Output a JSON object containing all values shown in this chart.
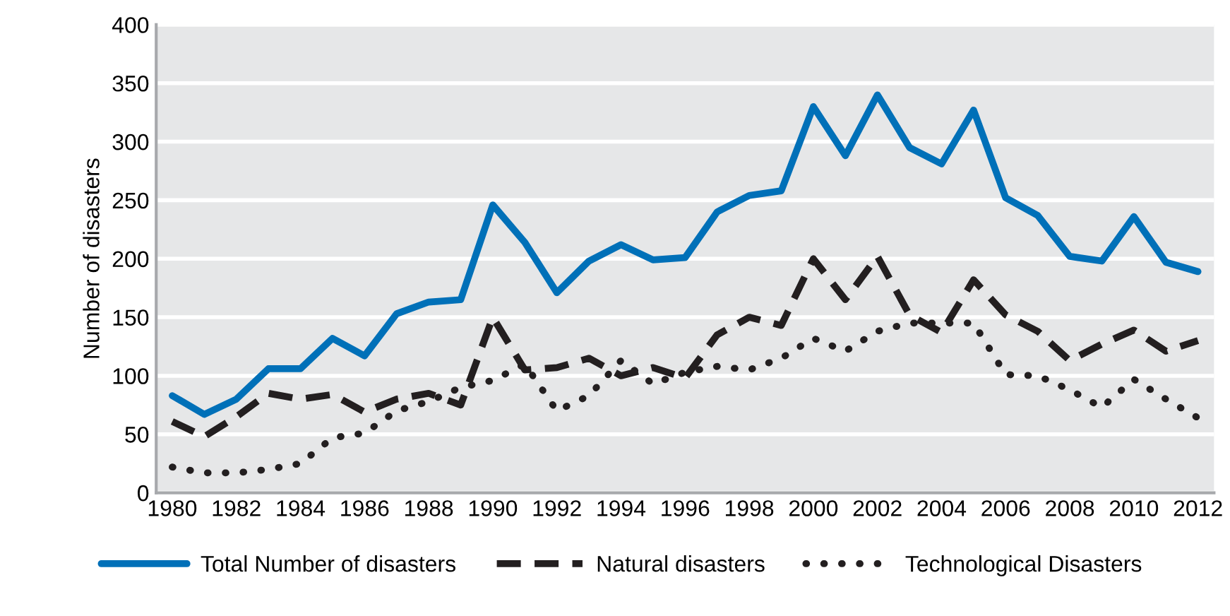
{
  "chart_data": {
    "type": "line",
    "ylabel": "Number of disasters",
    "x": [
      1980,
      1981,
      1982,
      1983,
      1984,
      1985,
      1986,
      1987,
      1988,
      1989,
      1990,
      1991,
      1992,
      1993,
      1994,
      1995,
      1996,
      1997,
      1998,
      1999,
      2000,
      2001,
      2002,
      2003,
      2004,
      2005,
      2006,
      2007,
      2008,
      2009,
      2010,
      2011,
      2012
    ],
    "series": [
      {
        "name": "Total Number of disasters",
        "color": "#0070b8",
        "line_style": "solid",
        "values": [
          83,
          67,
          80,
          106,
          106,
          132,
          117,
          153,
          163,
          165,
          246,
          214,
          171,
          198,
          212,
          199,
          201,
          240,
          254,
          258,
          330,
          288,
          340,
          295,
          281,
          327,
          252,
          237,
          202,
          198,
          236,
          197,
          189
        ]
      },
      {
        "name": "Natural disasters",
        "color": "#231f20",
        "line_style": "dashed",
        "values": [
          61,
          48,
          65,
          85,
          80,
          84,
          69,
          80,
          85,
          75,
          150,
          105,
          107,
          115,
          100,
          107,
          98,
          135,
          150,
          143,
          200,
          165,
          202,
          152,
          137,
          182,
          152,
          138,
          113,
          127,
          139,
          121,
          130
        ]
      },
      {
        "name": "Technological Disasters",
        "color": "#231f20",
        "line_style": "dotted",
        "values": [
          22,
          17,
          17,
          20,
          25,
          47,
          51,
          70,
          78,
          90,
          96,
          110,
          70,
          83,
          113,
          93,
          103,
          108,
          105,
          115,
          132,
          121,
          138,
          145,
          145,
          145,
          101,
          100,
          88,
          73,
          97,
          80,
          64
        ]
      }
    ],
    "xlim": [
      1979.5,
      2012.5
    ],
    "xticks": [
      1980,
      1982,
      1984,
      1986,
      1988,
      1990,
      1992,
      1994,
      1996,
      1998,
      2000,
      2002,
      2004,
      2006,
      2008,
      2010,
      2012
    ],
    "ylim": [
      0,
      400
    ],
    "yticks": [
      0,
      50,
      100,
      150,
      200,
      250,
      300,
      350,
      400
    ],
    "grid": "y",
    "legend": "bottom"
  }
}
